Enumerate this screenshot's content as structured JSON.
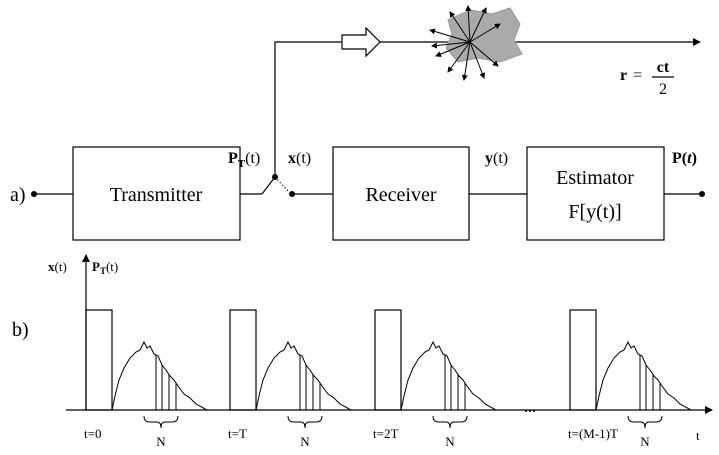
{
  "panel_a": {
    "label": "a)",
    "transmitter": "Transmitter",
    "receiver": "Receiver",
    "estimator": {
      "line1": "Estimator",
      "line2": "F[y(t)]"
    },
    "signals": {
      "pt": {
        "symbol": "P",
        "sub": "T",
        "arg": "(t)"
      },
      "x": {
        "symbol": "x",
        "arg": "(t)"
      },
      "y": {
        "symbol": "y",
        "arg": "(t)"
      },
      "p": {
        "symbol": "P",
        "open": "(",
        "var": "t",
        "close": ")"
      }
    },
    "range": {
      "lhs": "r",
      "eq": "=",
      "num": "ct",
      "den": "2"
    }
  },
  "panel_b": {
    "label": "b)",
    "axis_labels": {
      "x": {
        "symbol": "x",
        "arg": "(t)"
      },
      "pt": {
        "symbol": "P",
        "sub": "T",
        "arg": "(t)"
      },
      "time": "t"
    },
    "pulses": [
      {
        "time": "t=0",
        "gate": "N"
      },
      {
        "time": "t=T",
        "gate": "N"
      },
      {
        "time": "t=2T",
        "gate": "N"
      },
      {
        "time": "t=(M-1)T",
        "gate": "N"
      }
    ],
    "ellipsis": "..."
  }
}
